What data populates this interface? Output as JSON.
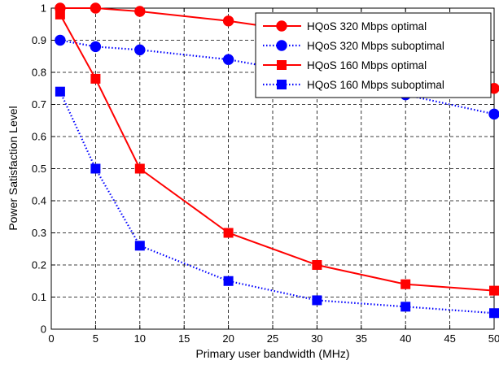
{
  "chart_data": {
    "type": "line",
    "title": "",
    "xlabel": "Primary user bandwidth (MHz)",
    "ylabel": "Power Satisfaction Level",
    "xlim": [
      0,
      50
    ],
    "ylim": [
      0,
      1
    ],
    "xticks": [
      0,
      5,
      10,
      15,
      20,
      25,
      30,
      35,
      40,
      45,
      50
    ],
    "yticks": [
      0,
      0.1,
      0.2,
      0.3,
      0.4,
      0.5,
      0.6,
      0.7,
      0.8,
      0.9,
      1
    ],
    "xtick_labels": [
      "0",
      "5",
      "10",
      "15",
      "20",
      "25",
      "30",
      "35",
      "40",
      "45",
      "50"
    ],
    "ytick_labels": [
      "0",
      "0.1",
      "0.2",
      "0.3",
      "0.4",
      "0.5",
      "0.6",
      "0.7",
      "0.8",
      "0.9",
      "1"
    ],
    "grid": true,
    "legend_position": "top-right",
    "x": [
      1,
      5,
      10,
      20,
      30,
      40,
      50
    ],
    "series": [
      {
        "name": "HQoS 320 Mbps optimal",
        "color": "#ff0000",
        "marker": "circle",
        "line": "solid",
        "values": [
          1.0,
          1.0,
          0.99,
          0.96,
          0.92,
          0.85,
          0.75
        ]
      },
      {
        "name": "HQoS 320 Mbps suboptimal",
        "color": "#0000ff",
        "marker": "circle",
        "line": "dotted",
        "values": [
          0.9,
          0.88,
          0.87,
          0.84,
          0.79,
          0.73,
          0.67
        ]
      },
      {
        "name": "HQoS 160 Mbps optimal",
        "color": "#ff0000",
        "marker": "square",
        "line": "solid",
        "values": [
          0.98,
          0.78,
          0.5,
          0.3,
          0.2,
          0.14,
          0.12
        ]
      },
      {
        "name": "HQoS 160 Mbps suboptimal",
        "color": "#0000ff",
        "marker": "square",
        "line": "dotted",
        "values": [
          0.74,
          0.5,
          0.26,
          0.15,
          0.09,
          0.07,
          0.05
        ]
      }
    ]
  }
}
